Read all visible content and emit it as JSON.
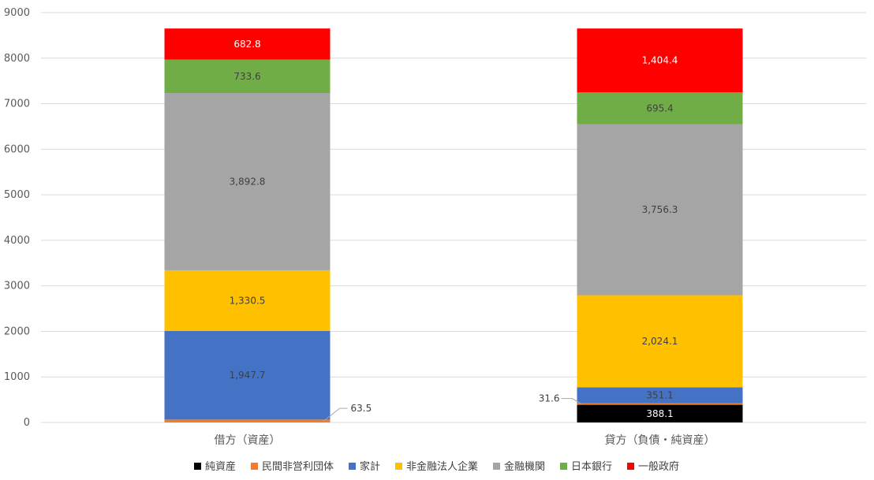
{
  "chart_data": {
    "type": "bar",
    "stacked": true,
    "categories": [
      "借方（資産）",
      "貸方（負債・純資産）"
    ],
    "series": [
      {
        "name": "純資産",
        "color": "#000000",
        "values": [
          0,
          388.1
        ],
        "labels": [
          "",
          "388.1"
        ],
        "label_color": "#ffffff"
      },
      {
        "name": "民間非営利団体",
        "color": "#ED7D31",
        "values": [
          63.5,
          31.6
        ],
        "labels": [
          "63.5",
          "31.6"
        ],
        "label_color": "#404040"
      },
      {
        "name": "家計",
        "color": "#4472C4",
        "values": [
          1947.7,
          351.1
        ],
        "labels": [
          "1,947.7",
          "351.1"
        ],
        "label_color": "#404040"
      },
      {
        "name": "非金融法人企業",
        "color": "#FFC000",
        "values": [
          1330.5,
          2024.1
        ],
        "labels": [
          "1,330.5",
          "2,024.1"
        ],
        "label_color": "#404040"
      },
      {
        "name": "金融機関",
        "color": "#A5A5A5",
        "values": [
          3892.8,
          3756.3
        ],
        "labels": [
          "3,892.8",
          "3,756.3"
        ],
        "label_color": "#404040"
      },
      {
        "name": "日本銀行",
        "color": "#70AD47",
        "values": [
          733.6,
          695.4
        ],
        "labels": [
          "733.6",
          "695.4"
        ],
        "label_color": "#404040"
      },
      {
        "name": "一般政府",
        "color": "#FF0000",
        "values": [
          682.8,
          1404.4
        ],
        "labels": [
          "682.8",
          "1,404.4"
        ],
        "label_color": "#ffffff"
      }
    ],
    "ylim": [
      0,
      9000
    ],
    "yticks": [
      "0",
      "1000",
      "2000",
      "3000",
      "4000",
      "5000",
      "6000",
      "7000",
      "8000",
      "9000"
    ],
    "grid": true,
    "legend_position": "bottom"
  }
}
